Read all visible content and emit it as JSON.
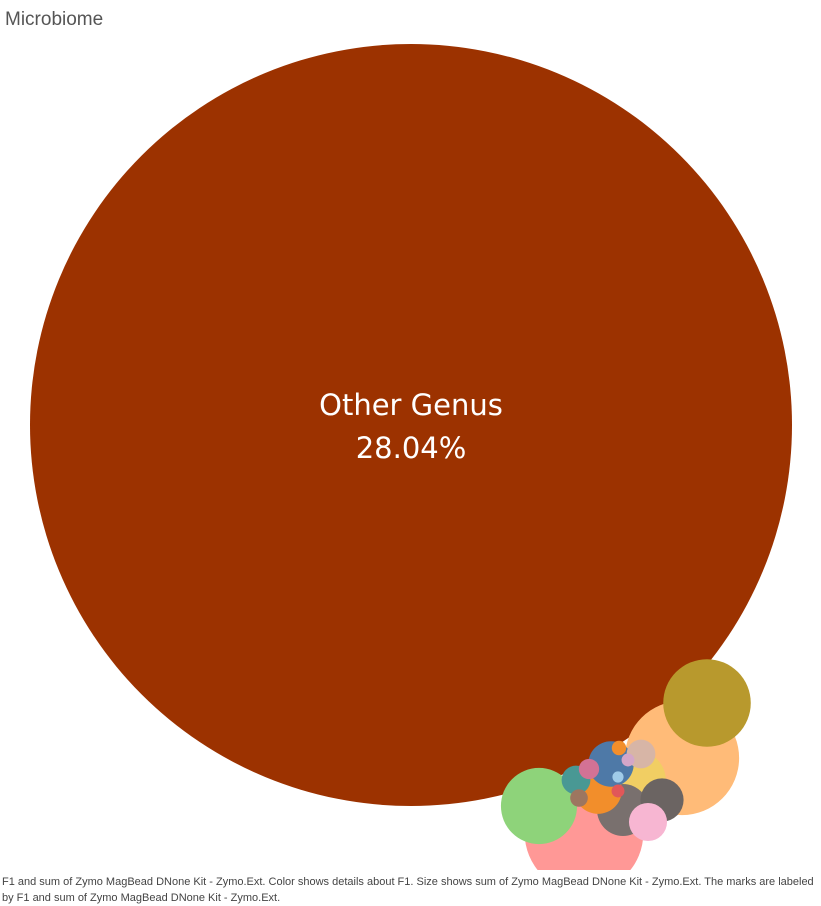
{
  "title": "Microbiome",
  "caption": "F1 and sum of Zymo MagBead DNone Kit - Zymo.Ext.  Color shows details about F1.  Size shows sum of Zymo MagBead DNone Kit - Zymo.Ext.  The marks are labeled by F1 and sum of Zymo MagBead DNone Kit - Zymo.Ext.",
  "chart_data": {
    "type": "bubble",
    "measure": "sum of Zymo MagBead DNone Kit - Zymo.Ext.",
    "dimension": "F1",
    "bubbles": [
      {
        "name": "Other Genus",
        "value_label": "28.04%",
        "value": 28.04,
        "color": "#9c3200",
        "labeled": true
      },
      {
        "name": "",
        "value": 0.68,
        "color": "#ff9896",
        "labeled": false
      },
      {
        "name": "",
        "value": 0.63,
        "color": "#ffbb78",
        "labeled": false
      },
      {
        "name": "",
        "value": 0.37,
        "color": "#b8992d",
        "labeled": false
      },
      {
        "name": "",
        "value": 0.28,
        "color": "#8ed37a",
        "labeled": false
      },
      {
        "name": "",
        "value": 0.16,
        "color": "#f1ce63",
        "labeled": false
      },
      {
        "name": "",
        "value": 0.13,
        "color": "#79706e",
        "labeled": false
      },
      {
        "name": "",
        "value": 0.11,
        "color": "#f28e2b",
        "labeled": false
      },
      {
        "name": "",
        "value": 0.1,
        "color": "#4e79a7",
        "labeled": false
      },
      {
        "name": "",
        "value": 0.09,
        "color": "#6b6462",
        "labeled": false
      },
      {
        "name": "",
        "value": 0.07,
        "color": "#f7b6d2",
        "labeled": false
      },
      {
        "name": "",
        "value": 0.04,
        "color": "#d7b5a6",
        "labeled": false
      },
      {
        "name": "",
        "value": 0.04,
        "color": "#499894",
        "labeled": false
      },
      {
        "name": "",
        "value": 0.02,
        "color": "#d37295",
        "labeled": false
      },
      {
        "name": "",
        "value": 0.015,
        "color": "#9d7660",
        "labeled": false
      },
      {
        "name": "",
        "value": 0.01,
        "color": "#f28e2b",
        "labeled": false
      },
      {
        "name": "",
        "value": 0.008,
        "color": "#e15759",
        "labeled": false
      },
      {
        "name": "",
        "value": 0.008,
        "color": "#d4a6c8",
        "labeled": false
      },
      {
        "name": "",
        "value": 0.006,
        "color": "#a0cbe8",
        "labeled": false
      }
    ]
  }
}
